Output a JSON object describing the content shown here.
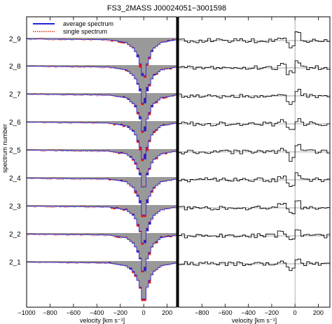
{
  "chart_data": {
    "type": "line",
    "title": "FS3_2MASS J00024051−3001598",
    "ylabel": "spectrum number",
    "spectrum_labels": [
      "2_9",
      "2_8",
      "2_7",
      "2_6",
      "2_5",
      "2_4",
      "2_3",
      "2_2",
      "2_1"
    ],
    "legend": {
      "placement": "top-left",
      "entries": [
        {
          "name": "average spectrum",
          "color": "#2222dd",
          "style": "solid"
        },
        {
          "name": "single spectrum",
          "color": "#dd2200",
          "style": "dotted"
        }
      ]
    },
    "left_panel": {
      "xlabel": "velocity [km s⁻¹]",
      "xlim": [
        -1000,
        280
      ],
      "xticks": [
        {
          "value": -1000,
          "label": "−1000"
        },
        {
          "value": -800,
          "label": "−800"
        },
        {
          "value": -600,
          "label": "−600"
        },
        {
          "value": -400,
          "label": "−400"
        },
        {
          "value": -200,
          "label": "−200"
        },
        {
          "value": 0,
          "label": "0"
        },
        {
          "value": 200,
          "label": "200"
        }
      ],
      "average_profile": {
        "v": [
          -1000,
          -300,
          -150,
          -80,
          -40,
          -20,
          -10,
          0,
          10,
          20,
          40,
          80,
          150,
          280
        ],
        "depth": [
          0.03,
          0.05,
          0.12,
          0.28,
          0.55,
          0.75,
          0.95,
          0.85,
          0.95,
          0.75,
          0.55,
          0.28,
          0.12,
          0.05
        ]
      }
    },
    "right_panel": {
      "xlabel": "velocity [km s⁻¹]",
      "xlim": [
        -1000,
        300
      ],
      "xticks": [
        {
          "value": -800,
          "label": "−800"
        },
        {
          "value": -600,
          "label": "−600"
        },
        {
          "value": -400,
          "label": "−400"
        },
        {
          "value": -200,
          "label": "−200"
        },
        {
          "value": 0,
          "label": "0"
        },
        {
          "value": 200,
          "label": "200"
        }
      ],
      "zero_line_velocity": 0
    },
    "colors": {
      "fill": "#999999",
      "average": "#2222dd",
      "single": "#dd2200",
      "excess": "#ee1111",
      "deficit": "#2222cc",
      "residual": "#000000",
      "axes": "#000000"
    }
  }
}
